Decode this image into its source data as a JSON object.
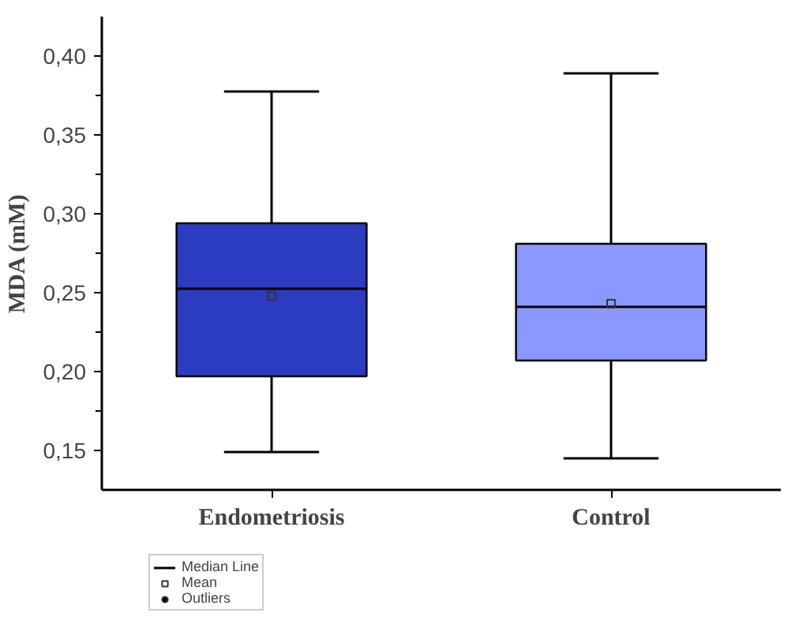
{
  "chart_data": {
    "type": "box",
    "ylabel": "MDA (mM)",
    "categories": [
      "Endometriosis",
      "Control"
    ],
    "ylim": [
      0.125,
      0.425
    ],
    "yticks": [
      {
        "value": 0.15,
        "label": "0,15"
      },
      {
        "value": 0.2,
        "label": "0,20"
      },
      {
        "value": 0.25,
        "label": "0,25"
      },
      {
        "value": 0.3,
        "label": "0,30"
      },
      {
        "value": 0.35,
        "label": "0,35"
      },
      {
        "value": 0.4,
        "label": "0,40"
      }
    ],
    "series": [
      {
        "name": "Median Line",
        "colors": [
          "#2c3cc0",
          "#8a98ff"
        ],
        "boxes": [
          {
            "low": 0.149,
            "q1": 0.197,
            "median": 0.2525,
            "q3": 0.294,
            "high": 0.3775
          },
          {
            "low": 0.145,
            "q1": 0.207,
            "median": 0.241,
            "q3": 0.281,
            "high": 0.389
          }
        ]
      },
      {
        "type": "scatter",
        "name": "Mean",
        "marker": "square",
        "x": [
          "Endometriosis",
          "Control"
        ],
        "values": [
          0.248,
          0.243
        ]
      },
      {
        "type": "scatter",
        "name": "Outliers",
        "marker": "circle",
        "x": [
          "Endometriosis",
          "Control"
        ],
        "values": [
          null,
          null
        ]
      }
    ],
    "legend": "bottom left",
    "grid": false
  }
}
